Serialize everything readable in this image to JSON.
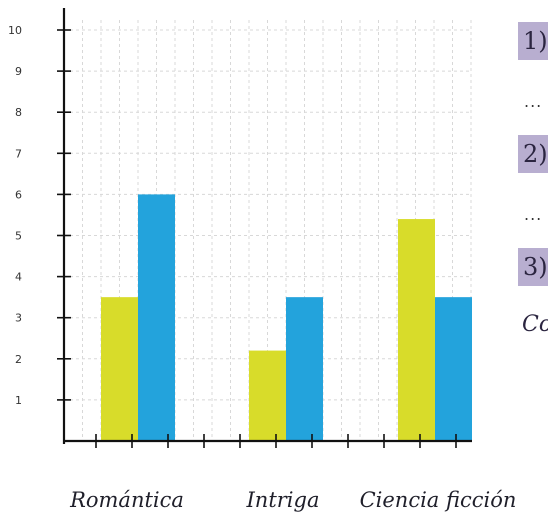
{
  "chart_data": {
    "type": "bar",
    "categories": [
      "Romántica",
      "Intriga",
      "Ciencia ficción"
    ],
    "series": [
      {
        "values": [
          3.5,
          2.2,
          5.4
        ]
      },
      {
        "values": [
          6.0,
          3.5,
          3.5
        ]
      }
    ],
    "yticks": [
      "1",
      "2",
      "3",
      "4",
      "5",
      "6",
      "7",
      "8",
      "9",
      "10"
    ],
    "ylim": [
      0,
      10
    ],
    "grid": true,
    "colors": [
      "#d8dc2a",
      "#23a3dc"
    ]
  },
  "side": {
    "item1": "1)",
    "dots1": "...",
    "item2": "2)",
    "dots2": "...",
    "item3": "3)",
    "trail": "Co"
  }
}
